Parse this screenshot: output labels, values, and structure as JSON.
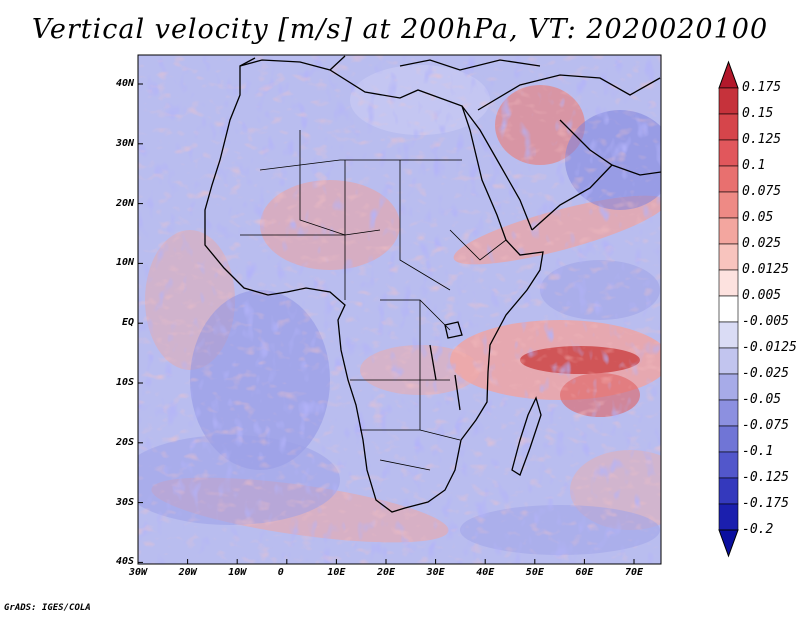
{
  "title": "Vertical velocity [m/s] at 200hPa, VT: 2020020100",
  "credit": "GrADS: IGES/COLA",
  "map": {
    "lat_labels": [
      "40N",
      "30N",
      "20N",
      "10N",
      "EQ",
      "10S",
      "20S",
      "30S",
      "40S"
    ],
    "lon_labels": [
      "30W",
      "20W",
      "10W",
      "0",
      "10E",
      "20E",
      "30E",
      "40E",
      "50E",
      "60E",
      "70E"
    ],
    "lon_range": [
      -30,
      76
    ],
    "lat_range": [
      -40,
      45
    ]
  },
  "colorbar": {
    "labels": [
      "0.175",
      "0.15",
      "0.125",
      "0.1",
      "0.075",
      "0.05",
      "0.025",
      "0.0125",
      "0.005",
      "-0.005",
      "-0.0125",
      "-0.025",
      "-0.05",
      "-0.075",
      "-0.1",
      "-0.125",
      "-0.175",
      "-0.2"
    ],
    "colors": [
      "#b2182b",
      "#c6323b",
      "#d6454b",
      "#e1575c",
      "#e8706f",
      "#ee8a85",
      "#f3a69f",
      "#f8c4be",
      "#fde2df",
      "#ffffff",
      "#dadcf5",
      "#c2c5ef",
      "#a7abe8",
      "#8c90e0",
      "#7075d6",
      "#5257cb",
      "#3439bd",
      "#1b1fae",
      "#0b0f9f"
    ]
  }
}
